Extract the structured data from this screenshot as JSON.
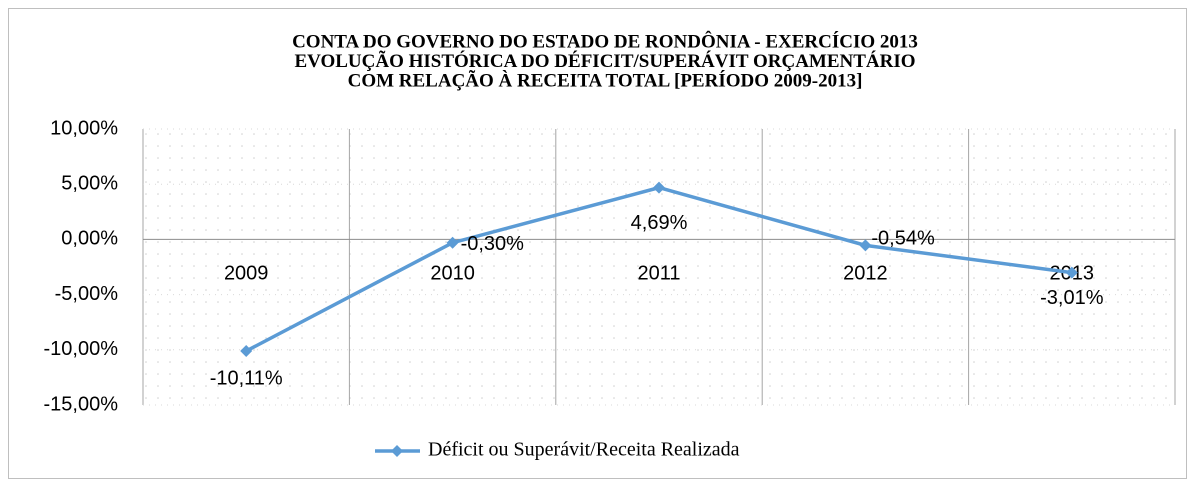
{
  "chart_data": {
    "type": "line",
    "title": [
      "CONTA DO GOVERNO DO ESTADO DE RONDÔNIA - EXERCÍCIO 2013",
      "EVOLUÇÃO HISTÓRICA DO DÉFICIT/SUPERÁVIT ORÇAMENTÁRIO",
      "COM RELAÇÃO À RECEITA TOTAL [PERÍODO 2009-2013]"
    ],
    "categories": [
      "2009",
      "2010",
      "2011",
      "2012",
      "2013"
    ],
    "series": [
      {
        "name": "Déficit ou Superávit/Receita Realizada",
        "color": "#5b9bd5",
        "values": [
          -10.11,
          -0.3,
          4.69,
          -0.54,
          -3.01
        ],
        "value_labels": [
          "-10,11%",
          "-0,30%",
          "4,69%",
          "-0,54%",
          "-3,01%"
        ]
      }
    ],
    "ylim": [
      -15,
      10
    ],
    "yticks": [
      {
        "value": -15,
        "label": "-15,00%"
      },
      {
        "value": -10,
        "label": "-10,00%"
      },
      {
        "value": -5,
        "label": "-5,00%"
      },
      {
        "value": 0,
        "label": "0,00%"
      },
      {
        "value": 5,
        "label": "5,00%"
      },
      {
        "value": 10,
        "label": "10,00%"
      }
    ],
    "grid": true,
    "legend": "bottom"
  }
}
